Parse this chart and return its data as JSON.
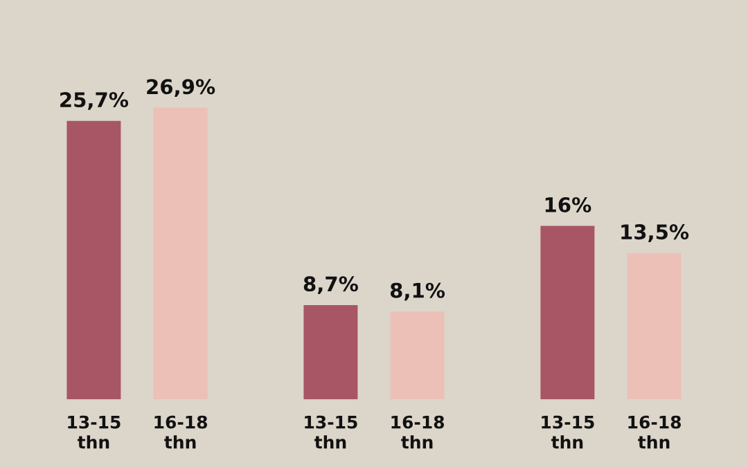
{
  "chart_data": {
    "type": "bar",
    "categories": [
      null,
      null,
      null
    ],
    "series": [
      {
        "name": "13-15\nthn",
        "color": "#a85666",
        "values": [
          25.7,
          8.7,
          16
        ],
        "value_labels": [
          "25,7%",
          "8,7%",
          "16%"
        ]
      },
      {
        "name": "16-18\nthn",
        "color": "#ecc0b7",
        "values": [
          26.9,
          8.1,
          13.5
        ],
        "value_labels": [
          "26,9%",
          "8,1%",
          "13,5%"
        ]
      }
    ]
  }
}
